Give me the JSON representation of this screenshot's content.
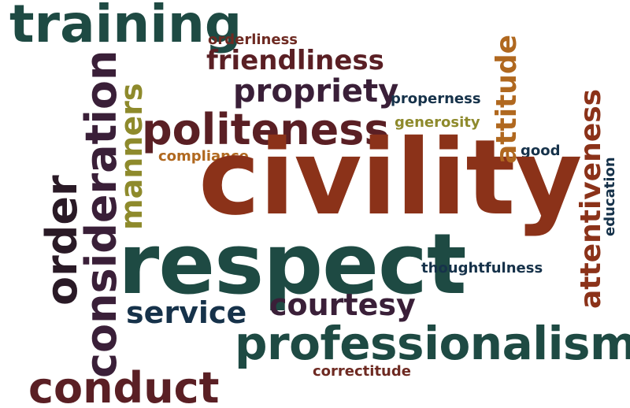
{
  "words": {
    "training": "training",
    "orderliness": "orderliness",
    "friendliness": "friendliness",
    "propriety": "propriety",
    "properness": "properness",
    "politeness": "politeness",
    "generosity": "generosity",
    "compliance": "compliance",
    "good": "good",
    "civility": "civility",
    "attitude": "attitude",
    "attentiveness": "attentiveness",
    "education": "education",
    "manners": "manners",
    "consideration": "consideration",
    "order": "order",
    "respect": "respect",
    "thoughtfulness": "thoughtfulness",
    "service": "service",
    "courtesy": "courtesy",
    "professionalism": "professionalism",
    "correctitude": "correctitude",
    "conduct": "conduct"
  },
  "colors": {
    "teal": "#1e4a43",
    "rust": "#8b3219",
    "maroon": "#5a1f24",
    "plum": "#3a1f38",
    "olive": "#8e8a2c",
    "orange": "#b0681f",
    "navy": "#16324a"
  }
}
